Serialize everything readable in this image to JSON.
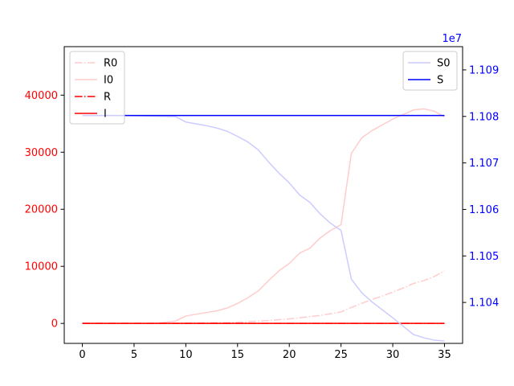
{
  "chart_data": {
    "type": "line",
    "x": [
      0,
      1,
      2,
      3,
      4,
      5,
      6,
      7,
      8,
      9,
      10,
      11,
      12,
      13,
      14,
      15,
      16,
      17,
      18,
      19,
      20,
      21,
      22,
      23,
      24,
      25,
      26,
      27,
      28,
      29,
      30,
      31,
      32,
      33,
      34,
      35
    ],
    "left_axis": {
      "ylim": [
        -3500,
        48500
      ],
      "ticks": [
        0,
        10000,
        20000,
        30000,
        40000
      ],
      "tick_labels": [
        "0",
        "10000",
        "20000",
        "30000",
        "40000"
      ],
      "color": "#ff0000"
    },
    "right_axis": {
      "ylim": [
        11031200,
        11095000
      ],
      "ticks": [
        11040000,
        11050000,
        11060000,
        11070000,
        11080000,
        11090000
      ],
      "tick_labels": [
        "1.104",
        "1.105",
        "1.106",
        "1.107",
        "1.108",
        "1.109"
      ],
      "offset_label": "1e7",
      "color": "#0000ff"
    },
    "x_axis": {
      "xlim": [
        -1.75,
        36.75
      ],
      "ticks": [
        0,
        5,
        10,
        15,
        20,
        25,
        30,
        35
      ],
      "tick_labels": [
        "0",
        "5",
        "10",
        "15",
        "20",
        "25",
        "30",
        "35"
      ]
    },
    "series": [
      {
        "name": "R0",
        "axis": "left",
        "style": "dashdot",
        "color": "#ffcccc",
        "values": [
          0,
          0,
          0,
          0,
          0,
          0,
          0,
          0,
          0,
          0,
          50,
          80,
          100,
          120,
          150,
          200,
          300,
          400,
          500,
          650,
          800,
          1000,
          1200,
          1400,
          1700,
          2000,
          2800,
          3500,
          4200,
          4800,
          5500,
          6200,
          7000,
          7500,
          8200,
          9200
        ]
      },
      {
        "name": "I0",
        "axis": "left",
        "style": "solid",
        "color": "#ffcccc",
        "values": [
          0,
          0,
          0,
          0,
          0,
          0,
          0,
          0,
          200,
          400,
          1300,
          1600,
          1900,
          2200,
          2700,
          3500,
          4500,
          5700,
          7500,
          9200,
          10500,
          12300,
          13200,
          15000,
          16300,
          17300,
          29800,
          32500,
          33800,
          34800,
          35800,
          36600,
          37400,
          37600,
          37200,
          36200
        ]
      },
      {
        "name": "R",
        "axis": "left",
        "style": "dashdot",
        "color": "#ff0000",
        "values": [
          0,
          0,
          0,
          0,
          0,
          0,
          0,
          0,
          0,
          0,
          0,
          0,
          0,
          0,
          0,
          0,
          0,
          0,
          0,
          0,
          0,
          0,
          0,
          0,
          0,
          0,
          0,
          0,
          0,
          0,
          0,
          0,
          0,
          0,
          0,
          0
        ]
      },
      {
        "name": "I",
        "axis": "left",
        "style": "solid",
        "color": "#ff0000",
        "values": [
          0,
          0,
          0,
          0,
          0,
          0,
          0,
          0,
          0,
          0,
          0,
          0,
          0,
          0,
          0,
          0,
          0,
          0,
          0,
          0,
          0,
          0,
          0,
          0,
          0,
          0,
          0,
          0,
          0,
          0,
          0,
          0,
          0,
          0,
          0,
          0
        ]
      },
      {
        "name": "S0",
        "axis": "right",
        "style": "solid",
        "color": "#ccccff",
        "values": [
          11080200,
          11080200,
          11080200,
          11080200,
          11080200,
          11080150,
          11080100,
          11080050,
          11080000,
          11079950,
          11078800,
          11078400,
          11078000,
          11077500,
          11076800,
          11075700,
          11074500,
          11072800,
          11070200,
          11067800,
          11065700,
          11063100,
          11061500,
          11059000,
          11057000,
          11055500,
          11045000,
          11042100,
          11040100,
          11038400,
          11036700,
          11034900,
          11033100,
          11032400,
          11031900,
          11031700
        ]
      },
      {
        "name": "S",
        "axis": "right",
        "style": "solid",
        "color": "#0000ff",
        "values": [
          11080200,
          11080200,
          11080200,
          11080200,
          11080200,
          11080200,
          11080200,
          11080200,
          11080200,
          11080200,
          11080200,
          11080200,
          11080200,
          11080200,
          11080200,
          11080200,
          11080200,
          11080200,
          11080200,
          11080200,
          11080200,
          11080200,
          11080200,
          11080200,
          11080200,
          11080200,
          11080200,
          11080200,
          11080200,
          11080200,
          11080200,
          11080200,
          11080200,
          11080200,
          11080200,
          11080200
        ]
      }
    ],
    "legends": [
      {
        "placement": "upper-left",
        "entries": [
          "R0",
          "I0",
          "R",
          "I"
        ]
      },
      {
        "placement": "upper-right",
        "entries": [
          "S0",
          "S"
        ]
      }
    ],
    "grid": false
  }
}
